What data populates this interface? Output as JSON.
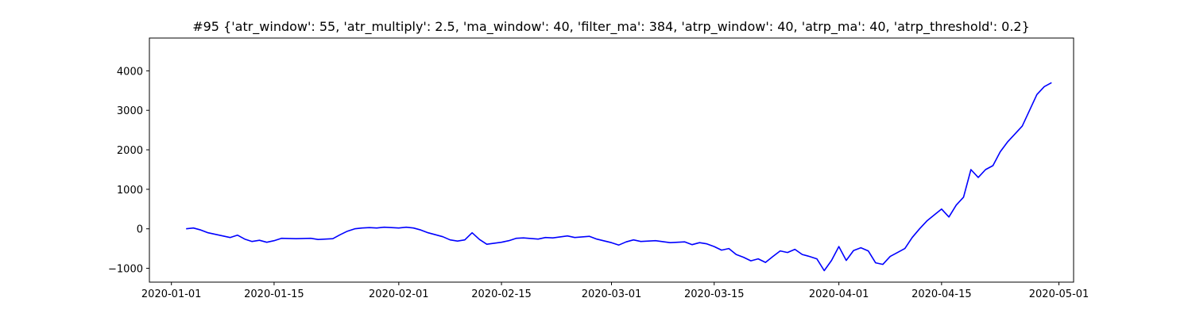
{
  "chart_data": {
    "type": "line",
    "title": "#95 {'atr_window': 55, 'atr_multiply': 2.5, 'ma_window': 40, 'filter_ma': 384, 'atrp_window': 40, 'atrp_ma': 40, 'atrp_threshold': 0.2}",
    "xlabel": "",
    "ylabel": "",
    "x_type": "date",
    "xlim": [
      "2019-12-29",
      "2020-05-03"
    ],
    "ylim": [
      -1350,
      4830
    ],
    "x_ticks": [
      "2020-01-01",
      "2020-01-15",
      "2020-02-01",
      "2020-02-15",
      "2020-03-01",
      "2020-03-15",
      "2020-04-01",
      "2020-04-15",
      "2020-05-01"
    ],
    "y_ticks": [
      -1000,
      0,
      1000,
      2000,
      3000,
      4000
    ],
    "grid": false,
    "series": [
      {
        "color": "#0000ff",
        "points": [
          [
            "2020-01-03",
            0
          ],
          [
            "2020-01-04",
            20
          ],
          [
            "2020-01-05",
            -30
          ],
          [
            "2020-01-06",
            -100
          ],
          [
            "2020-01-08",
            -180
          ],
          [
            "2020-01-09",
            -220
          ],
          [
            "2020-01-10",
            -160
          ],
          [
            "2020-01-11",
            -260
          ],
          [
            "2020-01-12",
            -320
          ],
          [
            "2020-01-13",
            -290
          ],
          [
            "2020-01-14",
            -340
          ],
          [
            "2020-01-15",
            -300
          ],
          [
            "2020-01-16",
            -240
          ],
          [
            "2020-01-18",
            -250
          ],
          [
            "2020-01-20",
            -240
          ],
          [
            "2020-01-21",
            -270
          ],
          [
            "2020-01-22",
            -260
          ],
          [
            "2020-01-23",
            -250
          ],
          [
            "2020-01-24",
            -150
          ],
          [
            "2020-01-25",
            -60
          ],
          [
            "2020-01-26",
            0
          ],
          [
            "2020-01-27",
            20
          ],
          [
            "2020-01-28",
            30
          ],
          [
            "2020-01-29",
            20
          ],
          [
            "2020-01-30",
            40
          ],
          [
            "2020-01-31",
            30
          ],
          [
            "2020-02-01",
            20
          ],
          [
            "2020-02-02",
            40
          ],
          [
            "2020-02-03",
            20
          ],
          [
            "2020-02-04",
            -30
          ],
          [
            "2020-02-05",
            -100
          ],
          [
            "2020-02-06",
            -150
          ],
          [
            "2020-02-07",
            -200
          ],
          [
            "2020-02-08",
            -280
          ],
          [
            "2020-02-09",
            -310
          ],
          [
            "2020-02-10",
            -280
          ],
          [
            "2020-02-11",
            -100
          ],
          [
            "2020-02-12",
            -270
          ],
          [
            "2020-02-13",
            -390
          ],
          [
            "2020-02-15",
            -340
          ],
          [
            "2020-02-16",
            -300
          ],
          [
            "2020-02-17",
            -240
          ],
          [
            "2020-02-18",
            -230
          ],
          [
            "2020-02-20",
            -260
          ],
          [
            "2020-02-21",
            -220
          ],
          [
            "2020-02-22",
            -230
          ],
          [
            "2020-02-24",
            -180
          ],
          [
            "2020-02-25",
            -220
          ],
          [
            "2020-02-27",
            -190
          ],
          [
            "2020-02-28",
            -260
          ],
          [
            "2020-03-01",
            -350
          ],
          [
            "2020-03-02",
            -410
          ],
          [
            "2020-03-03",
            -330
          ],
          [
            "2020-03-04",
            -280
          ],
          [
            "2020-03-05",
            -320
          ],
          [
            "2020-03-07",
            -300
          ],
          [
            "2020-03-09",
            -350
          ],
          [
            "2020-03-11",
            -330
          ],
          [
            "2020-03-12",
            -400
          ],
          [
            "2020-03-13",
            -350
          ],
          [
            "2020-03-14",
            -380
          ],
          [
            "2020-03-15",
            -450
          ],
          [
            "2020-03-16",
            -540
          ],
          [
            "2020-03-17",
            -500
          ],
          [
            "2020-03-18",
            -650
          ],
          [
            "2020-03-19",
            -720
          ],
          [
            "2020-03-20",
            -810
          ],
          [
            "2020-03-21",
            -760
          ],
          [
            "2020-03-22",
            -850
          ],
          [
            "2020-03-23",
            -700
          ],
          [
            "2020-03-24",
            -560
          ],
          [
            "2020-03-25",
            -600
          ],
          [
            "2020-03-26",
            -520
          ],
          [
            "2020-03-27",
            -650
          ],
          [
            "2020-03-28",
            -700
          ],
          [
            "2020-03-29",
            -760
          ],
          [
            "2020-03-30",
            -1060
          ],
          [
            "2020-03-31",
            -800
          ],
          [
            "2020-04-01",
            -450
          ],
          [
            "2020-04-02",
            -800
          ],
          [
            "2020-04-03",
            -550
          ],
          [
            "2020-04-04",
            -480
          ],
          [
            "2020-04-05",
            -560
          ],
          [
            "2020-04-06",
            -860
          ],
          [
            "2020-04-07",
            -900
          ],
          [
            "2020-04-08",
            -700
          ],
          [
            "2020-04-09",
            -600
          ],
          [
            "2020-04-10",
            -500
          ],
          [
            "2020-04-11",
            -220
          ],
          [
            "2020-04-12",
            0
          ],
          [
            "2020-04-13",
            200
          ],
          [
            "2020-04-14",
            350
          ],
          [
            "2020-04-15",
            500
          ],
          [
            "2020-04-16",
            300
          ],
          [
            "2020-04-17",
            600
          ],
          [
            "2020-04-18",
            800
          ],
          [
            "2020-04-19",
            1500
          ],
          [
            "2020-04-20",
            1300
          ],
          [
            "2020-04-21",
            1500
          ],
          [
            "2020-04-22",
            1600
          ],
          [
            "2020-04-23",
            1950
          ],
          [
            "2020-04-24",
            2200
          ],
          [
            "2020-04-25",
            2400
          ],
          [
            "2020-04-26",
            2600
          ],
          [
            "2020-04-27",
            3000
          ],
          [
            "2020-04-28",
            3400
          ],
          [
            "2020-04-29",
            3600
          ],
          [
            "2020-04-30",
            3700
          ]
        ]
      }
    ]
  }
}
